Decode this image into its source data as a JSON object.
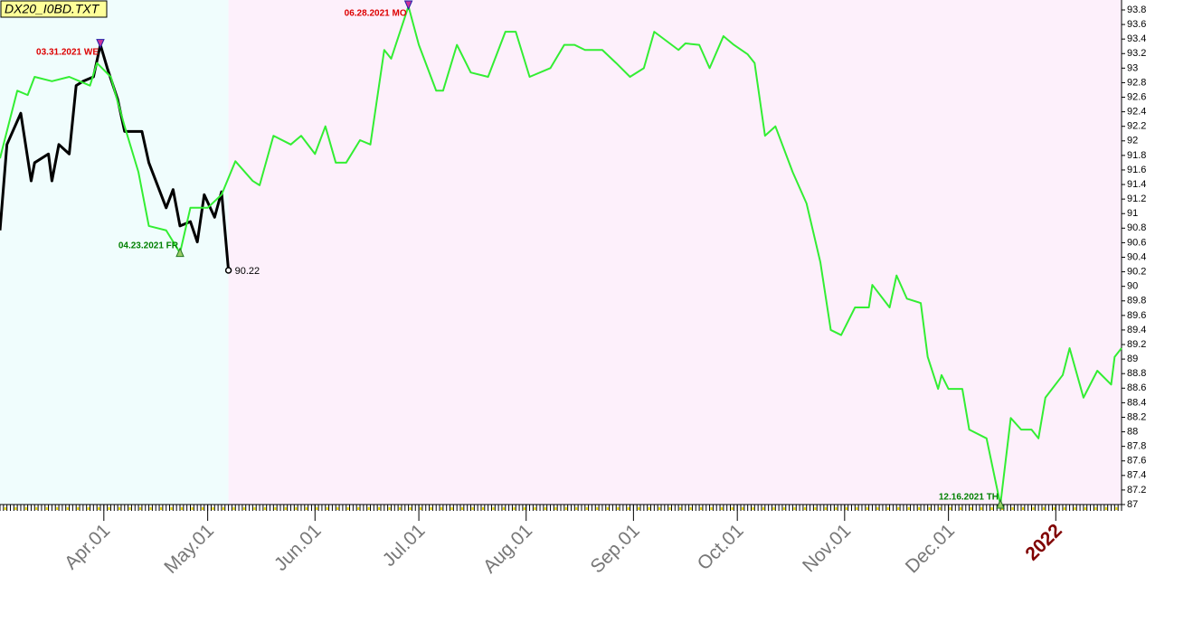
{
  "chart_data": {
    "type": "line",
    "title": "DX20_I0BD.TXT",
    "xlim": [
      "03.02.2021",
      "01.20.2022"
    ],
    "xticks": [
      {
        "value": "04.01.2021",
        "label": "Apr.01"
      },
      {
        "value": "05.01.2021",
        "label": "May.01"
      },
      {
        "value": "06.01.2021",
        "label": "Jun.01"
      },
      {
        "value": "07.01.2021",
        "label": "Jul.01"
      },
      {
        "value": "08.01.2021",
        "label": "Aug.01"
      },
      {
        "value": "09.01.2021",
        "label": "Sep.01"
      },
      {
        "value": "10.01.2021",
        "label": "Oct.01"
      },
      {
        "value": "11.01.2021",
        "label": "Nov.01"
      },
      {
        "value": "12.01.2021",
        "label": "Dec.01"
      },
      {
        "value": "01.01.2022",
        "label": "2022",
        "color": "#800000"
      }
    ],
    "ylim": [
      87,
      93.8
    ],
    "yticks": [
      87,
      87.2,
      87.4,
      87.6,
      87.8,
      88,
      88.2,
      88.4,
      88.6,
      88.8,
      89,
      89.2,
      89.4,
      89.6,
      89.8,
      90,
      90.2,
      90.4,
      90.6,
      90.8,
      91,
      91.2,
      91.4,
      91.6,
      91.8,
      92,
      92.2,
      92.4,
      92.6,
      92.8,
      93,
      93.2,
      93.4,
      93.6,
      93.8
    ],
    "series": [
      {
        "color": "#000000",
        "x": [
          "03.02.2021",
          "03.04.2021",
          "03.08.2021",
          "03.11.2021",
          "03.12.2021",
          "03.16.2021",
          "03.17.2021",
          "03.19.2021",
          "03.22.2021",
          "03.24.2021",
          "03.26.2021",
          "03.29.2021",
          "03.31.2021",
          "04.02.2021",
          "04.05.2021",
          "04.07.2021",
          "04.12.2021",
          "04.14.2021",
          "04.19.2021",
          "04.21.2021",
          "04.23.2021",
          "04.26.2021",
          "04.28.2021",
          "04.30.2021",
          "05.03.2021",
          "05.05.2021",
          "05.07.2021"
        ],
        "values": [
          90.77,
          91.95,
          92.38,
          91.45,
          91.7,
          91.82,
          91.45,
          91.95,
          91.82,
          92.76,
          92.82,
          92.88,
          93.32,
          93.0,
          92.57,
          92.13,
          92.13,
          91.7,
          91.08,
          91.33,
          90.83,
          90.89,
          90.61,
          91.26,
          90.95,
          91.3,
          90.22
        ]
      },
      {
        "color": "#33ee33",
        "x": [
          "03.02.2021",
          "03.05.2021",
          "03.07.2021",
          "03.10.2021",
          "03.12.2021",
          "03.17.2021",
          "03.22.2021",
          "03.28.2021",
          "03.30.2021",
          "04.03.2021",
          "04.07.2021",
          "04.11.2021",
          "04.14.2021",
          "04.19.2021",
          "04.23.2021",
          "04.26.2021",
          "05.01.2021",
          "05.05.2021",
          "05.09.2021",
          "05.14.2021",
          "05.16.2021",
          "05.20.2021",
          "05.25.2021",
          "05.28.2021",
          "06.01.2021",
          "06.04.2021",
          "06.07.2021",
          "06.10.2021",
          "06.14.2021",
          "06.17.2021",
          "06.21.2021",
          "06.23.2021",
          "06.28.2021",
          "07.01.2021",
          "07.06.2021",
          "07.08.2021",
          "07.12.2021",
          "07.16.2021",
          "07.21.2021",
          "07.26.2021",
          "07.29.2021",
          "08.02.2021",
          "08.08.2021",
          "08.12.2021",
          "08.15.2021",
          "08.18.2021",
          "08.23.2021",
          "08.27.2021",
          "08.31.2021",
          "09.04.2021",
          "09.07.2021",
          "09.14.2021",
          "09.16.2021",
          "09.20.2021",
          "09.23.2021",
          "09.27.2021",
          "09.30.2021",
          "10.04.2021",
          "10.06.2021",
          "10.09.2021",
          "10.12.2021",
          "10.17.2021",
          "10.21.2021",
          "10.25.2021",
          "10.28.2021",
          "10.31.2021",
          "11.04.2021",
          "11.08.2021",
          "11.09.2021",
          "11.14.2021",
          "11.16.2021",
          "11.19.2021",
          "11.23.2021",
          "11.25.2021",
          "11.28.2021",
          "11.29.2021",
          "12.01.2021",
          "12.05.2021",
          "12.07.2021",
          "12.12.2021",
          "12.16.2021",
          "12.19.2021",
          "12.22.2021",
          "12.25.2021",
          "12.27.2021",
          "12.29.2021",
          "01.03.2022",
          "01.05.2022",
          "01.09.2022",
          "01.13.2022",
          "01.17.2022",
          "01.18.2022",
          "01.20.2022"
        ],
        "values": [
          91.76,
          92.32,
          92.69,
          92.63,
          92.88,
          92.82,
          92.88,
          92.76,
          93.07,
          92.88,
          92.2,
          91.57,
          90.83,
          90.77,
          90.46,
          91.08,
          91.08,
          91.26,
          91.72,
          91.45,
          91.39,
          92.07,
          91.95,
          92.07,
          91.82,
          92.2,
          91.7,
          91.7,
          92.01,
          91.95,
          93.25,
          93.13,
          93.85,
          93.32,
          92.69,
          92.69,
          93.32,
          92.94,
          92.88,
          93.5,
          93.5,
          92.88,
          93.0,
          93.32,
          93.32,
          93.25,
          93.25,
          93.07,
          92.88,
          93.0,
          93.5,
          93.25,
          93.34,
          93.32,
          93.0,
          93.44,
          93.32,
          93.19,
          93.07,
          92.07,
          92.2,
          91.57,
          91.14,
          90.33,
          89.4,
          89.33,
          89.71,
          89.71,
          90.02,
          89.71,
          90.15,
          89.83,
          89.77,
          89.03,
          88.59,
          88.78,
          88.59,
          88.59,
          88.03,
          87.91,
          87.0,
          88.19,
          88.03,
          88.03,
          87.91,
          88.47,
          88.78,
          89.15,
          88.47,
          88.84,
          88.65,
          89.03,
          89.15
        ]
      }
    ],
    "annotations": [
      {
        "text": "03.31.2021 WE",
        "x": "03.31.2021",
        "kind": "high",
        "color": "#dd0000"
      },
      {
        "text": "04.23.2021 FR",
        "x": "04.23.2021",
        "kind": "low",
        "color": "#008000"
      },
      {
        "text": "06.28.2021 MO",
        "x": "06.28.2021",
        "kind": "high",
        "color": "#dd0000"
      },
      {
        "text": "12.16.2021 TH",
        "x": "12.16.2021",
        "kind": "low",
        "color": "#008000"
      }
    ]
  }
}
